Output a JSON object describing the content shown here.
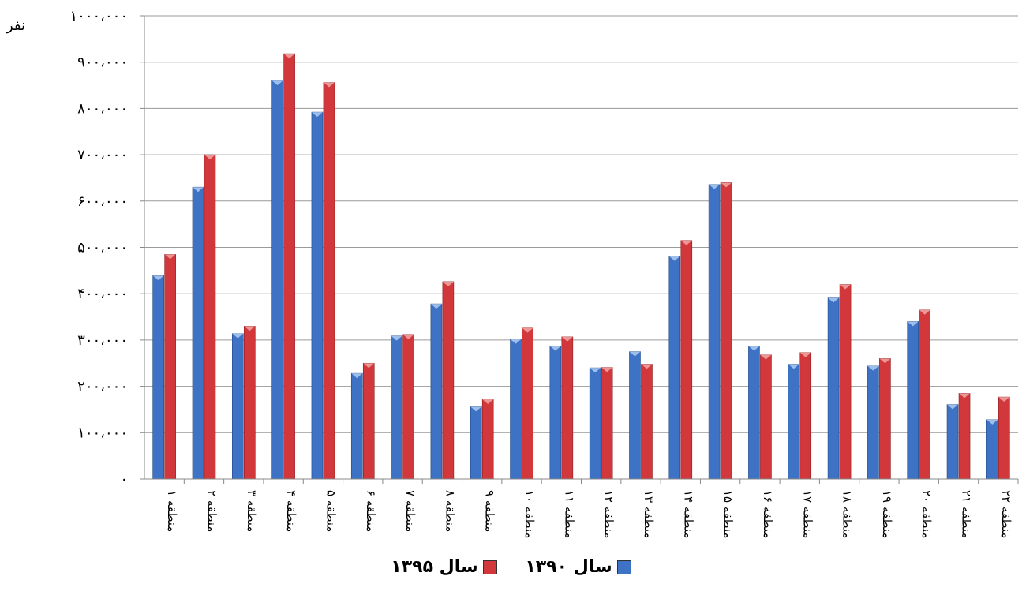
{
  "colors": {
    "series_1390": "#3d72c4",
    "series_1395": "#d2383b",
    "grid": "#9a9a9a"
  },
  "chart_data": {
    "type": "bar",
    "title": "",
    "xlabel": "",
    "ylabel": "نفر",
    "ylim": [
      0,
      1000000
    ],
    "yticks": [
      0,
      100000,
      200000,
      300000,
      400000,
      500000,
      600000,
      700000,
      800000,
      900000,
      1000000
    ],
    "ytick_labels": [
      "٠",
      "١٠٠،٠٠٠",
      "٢٠٠،٠٠٠",
      "٣٠٠،٠٠٠",
      "۴٠٠،٠٠٠",
      "۵٠٠،٠٠٠",
      "۶٠٠،٠٠٠",
      "٧٠٠،٠٠٠",
      "٨٠٠،٠٠٠",
      "٩٠٠،٠٠٠",
      "١٠٠٠،٠٠٠"
    ],
    "categories": [
      "منطقه ١",
      "منطقه ٢",
      "منطقه ٣",
      "منطقه ۴",
      "منطقه ۵",
      "منطقه ۶",
      "منطقه ٧",
      "منطقه ٨",
      "منطقه ٩",
      "منطقه ١٠",
      "منطقه ١١",
      "منطقه ١٢",
      "منطقه ١٣",
      "منطقه ١۴",
      "منطقه ١۵",
      "منطقه ١۶",
      "منطقه ١٧",
      "منطقه ١٨",
      "منطقه ١٩",
      "منطقه ٢٠",
      "منطقه ٢١",
      "منطقه ٢٢"
    ],
    "series": [
      {
        "name": "سال ١٣٩٠",
        "values": [
          439000,
          630000,
          314000,
          860000,
          792000,
          228000,
          309000,
          378000,
          156000,
          302000,
          287000,
          240000,
          275000,
          481000,
          636000,
          287000,
          248000,
          391000,
          244000,
          340000,
          161000,
          128000
        ]
      },
      {
        "name": "سال ١٣٩۵",
        "values": [
          485000,
          700000,
          330000,
          918000,
          856000,
          250000,
          312000,
          426000,
          172000,
          326000,
          307000,
          241000,
          248000,
          515000,
          640000,
          268000,
          273000,
          420000,
          260000,
          365000,
          185000,
          177000
        ]
      }
    ],
    "grid": true,
    "legend_position": "bottom"
  }
}
